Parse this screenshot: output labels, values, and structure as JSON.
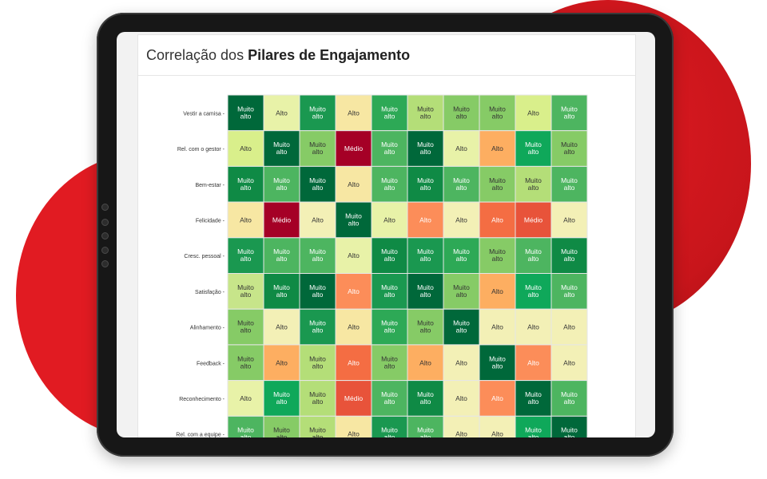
{
  "header": {
    "title_prefix": "Correlação dos",
    "title_emphasis": "Pilares de Engajamento"
  },
  "colors": {
    "Muito alto": [
      "#00683a",
      "#0f8a45",
      "#1a9850",
      "#2da956",
      "#4db560",
      "#6cc065",
      "#86cb66"
    ],
    "Alto": [
      "#d9ef8b",
      "#e8f2a8",
      "#f3f0b6",
      "#f7e7a3"
    ],
    "Alto (laranja)": [
      "#fdae61",
      "#fc8d59",
      "#f46d43"
    ],
    "Médio": [
      "#a50026",
      "#d73027",
      "#e8533a"
    ]
  },
  "chart_data": {
    "type": "heatmap",
    "title": "Correlação dos Pilares de Engajamento",
    "rows": [
      "Vestir a camisa",
      "Rel. com o gestor",
      "Bem-estar",
      "Felicidade",
      "Cresc. pessoal",
      "Satisfação",
      "Alinhamento",
      "Feedback",
      "Reconhecimento",
      "Rel. com a equipe"
    ],
    "columns_count": 10,
    "cells": [
      [
        "Muito alto",
        "Alto",
        "Muito alto",
        "Alto",
        "Muito alto",
        "Muito alto",
        "Muito alto",
        "Muito alto",
        "Alto",
        "Muito alto"
      ],
      [
        "Alto",
        "Muito alto",
        "Muito alto",
        "Médio",
        "Muito alto",
        "Muito alto",
        "Alto",
        "Alto",
        "Muito alto",
        "Muito alto"
      ],
      [
        "Muito alto",
        "Muito alto",
        "Muito alto",
        "Alto",
        "Muito alto",
        "Muito alto",
        "Muito alto",
        "Muito alto",
        "Muito alto",
        "Muito alto"
      ],
      [
        "Alto",
        "Médio",
        "Alto",
        "Muito alto",
        "Alto",
        "Alto",
        "Alto",
        "Alto",
        "Médio",
        "Alto"
      ],
      [
        "Muito alto",
        "Muito alto",
        "Muito alto",
        "Alto",
        "Muito alto",
        "Muito alto",
        "Muito alto",
        "Muito alto",
        "Muito alto",
        "Muito alto"
      ],
      [
        "Muito alto",
        "Muito alto",
        "Muito alto",
        "Alto",
        "Muito alto",
        "Muito alto",
        "Muito alto",
        "Alto",
        "Muito alto",
        "Muito alto"
      ],
      [
        "Muito alto",
        "Alto",
        "Muito alto",
        "Alto",
        "Muito alto",
        "Muito alto",
        "Muito alto",
        "Alto",
        "Alto",
        "Alto"
      ],
      [
        "Muito alto",
        "Alto",
        "Muito alto",
        "Alto",
        "Muito alto",
        "Alto",
        "Alto",
        "Muito alto",
        "Alto",
        "Alto"
      ],
      [
        "Alto",
        "Muito alto",
        "Muito alto",
        "Médio",
        "Muito alto",
        "Muito alto",
        "Alto",
        "Alto",
        "Muito alto",
        "Muito alto"
      ],
      [
        "Muito alto",
        "Muito alto",
        "Muito alto",
        "Alto",
        "Muito alto",
        "Muito alto",
        "Alto",
        "Alto",
        "Muito alto",
        "Muito alto"
      ]
    ],
    "cell_colors": [
      [
        "#00683a",
        "#e8f2a8",
        "#1a9850",
        "#f7e7a3",
        "#2da956",
        "#b4de78",
        "#86cb66",
        "#86cb66",
        "#d9ef8b",
        "#4db560"
      ],
      [
        "#d9ef8b",
        "#00683a",
        "#86cb66",
        "#a50026",
        "#4db560",
        "#00683a",
        "#e8f2a8",
        "#fdae61",
        "#0fa85a",
        "#86cb66"
      ],
      [
        "#0f8a45",
        "#4db560",
        "#00683a",
        "#f7e7a3",
        "#4db560",
        "#0f8a45",
        "#4db560",
        "#86cb66",
        "#b4de78",
        "#4db560"
      ],
      [
        "#f7e7a3",
        "#a50026",
        "#f3f0b6",
        "#00683a",
        "#e8f2a8",
        "#fc8d59",
        "#f3f0b6",
        "#f46d43",
        "#e8533a",
        "#f3f0b6"
      ],
      [
        "#1a9850",
        "#4db560",
        "#4db560",
        "#e8f2a8",
        "#0f8a45",
        "#1a9850",
        "#2da956",
        "#86cb66",
        "#4db560",
        "#0f8a45"
      ],
      [
        "#c7e58a",
        "#0f8a45",
        "#00683a",
        "#fc8d59",
        "#1a9850",
        "#00683a",
        "#86cb66",
        "#fdae61",
        "#0fa85a",
        "#4db560"
      ],
      [
        "#86cb66",
        "#f3f0b6",
        "#1a9850",
        "#f7e7a3",
        "#2da956",
        "#86cb66",
        "#00683a",
        "#f3f0b6",
        "#f3f0b6",
        "#f3f0b6"
      ],
      [
        "#86cb66",
        "#fdae61",
        "#b4de78",
        "#f46d43",
        "#86cb66",
        "#fdae61",
        "#f3f0b6",
        "#00683a",
        "#fc8d59",
        "#f3f0b6"
      ],
      [
        "#e8f2a8",
        "#0fa85a",
        "#b4de78",
        "#e8533a",
        "#4db560",
        "#0f8a45",
        "#f3f0b6",
        "#fc8d59",
        "#00683a",
        "#4db560"
      ],
      [
        "#4db560",
        "#86cb66",
        "#b4de78",
        "#f7e7a3",
        "#1a9850",
        "#4db560",
        "#f3f0b6",
        "#f3f0b6",
        "#0fa85a",
        "#00683a"
      ]
    ],
    "legend": false,
    "grid": false
  }
}
